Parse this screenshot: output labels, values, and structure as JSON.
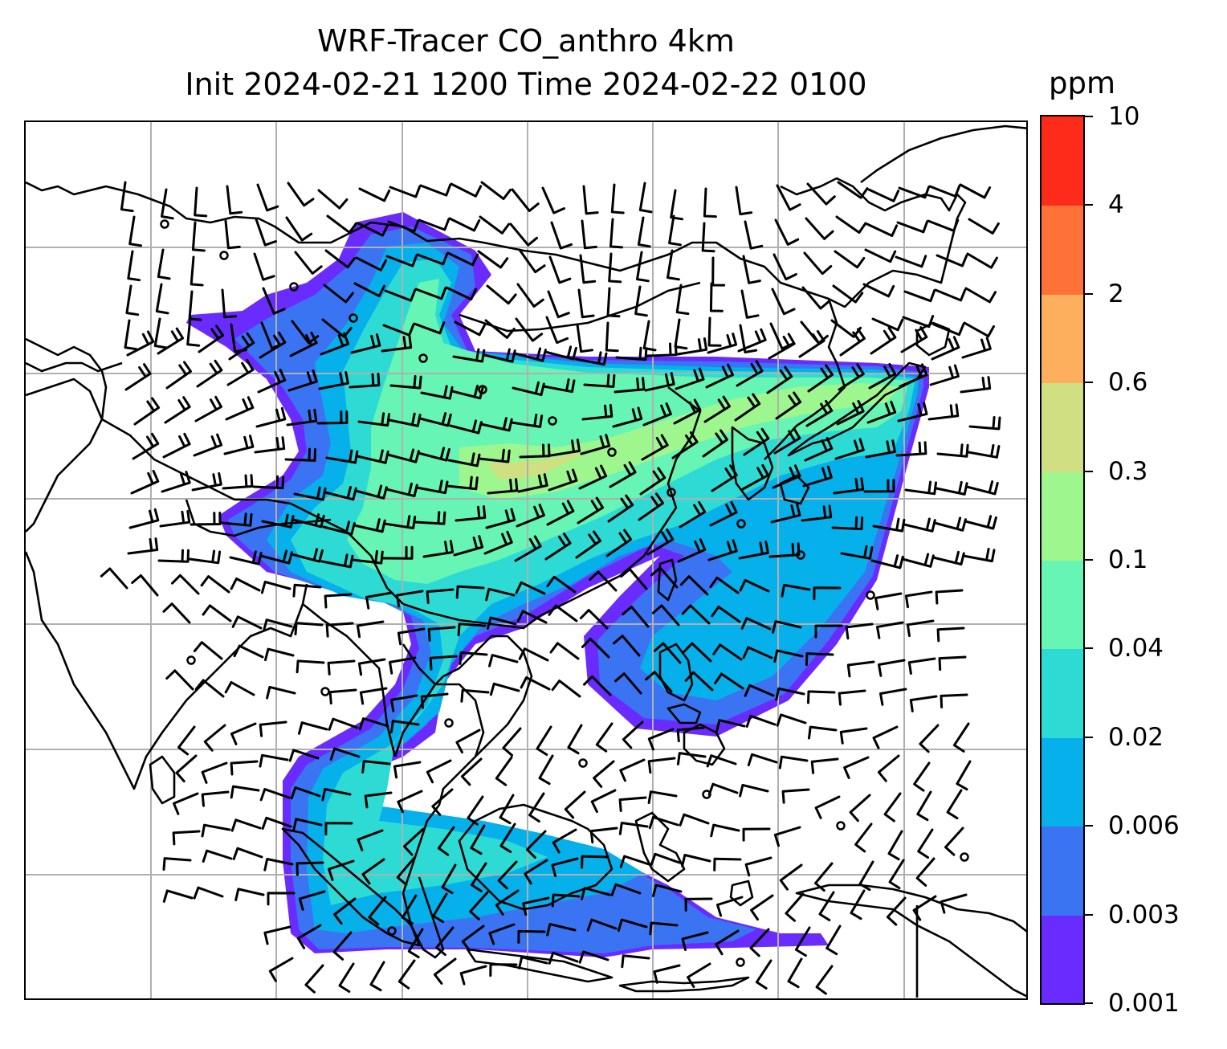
{
  "title": {
    "line1": "WRF-Tracer CO_anthro 4km",
    "line2": "Init 2024-02-21 1200 Time 2024-02-22 0100"
  },
  "colorbar": {
    "unit": "ppm",
    "levels": [
      "0.001",
      "0.003",
      "0.006",
      "0.02",
      "0.04",
      "0.1",
      "0.3",
      "0.6",
      "2",
      "4",
      "10"
    ],
    "colors": [
      "#6a2bfe",
      "#3a74f2",
      "#06b0ea",
      "#2edbd4",
      "#66f5b4",
      "#9ef78e",
      "#d0df82",
      "#feaf5e",
      "#fe7238",
      "#fe2a1a"
    ]
  },
  "map": {
    "field": "CO_anthro",
    "gridlines": true,
    "coastlines": true,
    "wind_barbs": true
  }
}
